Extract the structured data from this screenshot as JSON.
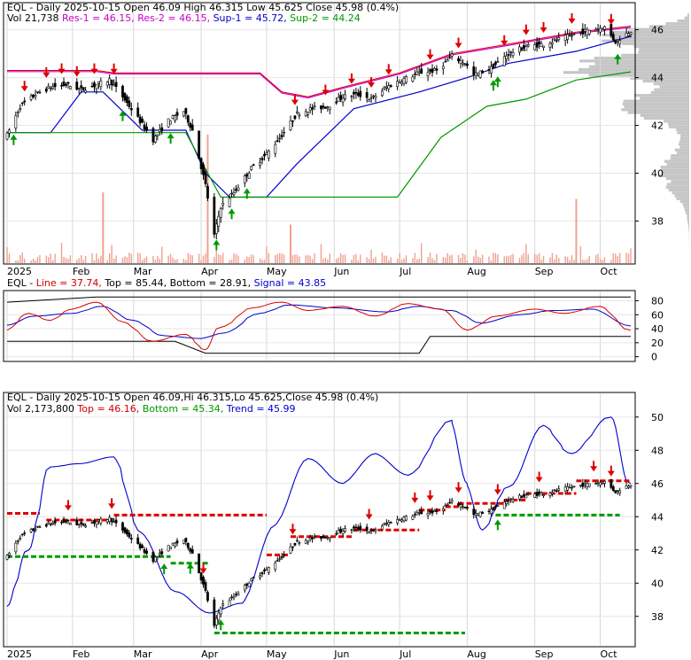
{
  "chart_data": [
    {
      "type": "candlestick",
      "panel": "price",
      "header": {
        "line1_parts": [
          {
            "text": "EQL - Daily 2025-10-15 Open 46.09  High 46.315  Low 45.625  Close 45.98 (0.4%)",
            "color": "#000000"
          }
        ],
        "line2_parts": [
          {
            "text": "Vol 21,738",
            "color": "#000000"
          },
          {
            "text": "Res-1 = 46.15,",
            "color": "#cc00cc"
          },
          {
            "text": "Res-2 = 46.15,",
            "color": "#cc00cc"
          },
          {
            "text": "Sup-1 = 45.72,",
            "color": "#0000cc"
          },
          {
            "text": "Sup-2 = 44.24",
            "color": "#009900"
          }
        ]
      },
      "x_labels": [
        "2025",
        "Feb",
        "Mar",
        "Apr",
        "May",
        "Jun",
        "Jul",
        "Aug",
        "Sep",
        "Oct"
      ],
      "ylim": [
        36.5,
        46.8
      ],
      "y_ticks": [
        38,
        40,
        42,
        44,
        46
      ],
      "anchors": {
        "dates": [
          "2025-01-02",
          "2025-10-15"
        ],
        "close": [
          41.6,
          45.98
        ]
      },
      "close_path": [
        [
          "2025-01-02",
          41.6
        ],
        [
          "2025-01-08",
          42.8
        ],
        [
          "2025-01-15",
          43.3
        ],
        [
          "2025-01-22",
          43.6
        ],
        [
          "2025-01-29",
          43.7
        ],
        [
          "2025-02-05",
          43.5
        ],
        [
          "2025-02-12",
          43.7
        ],
        [
          "2025-02-18",
          43.9
        ],
        [
          "2025-02-24",
          43.2
        ],
        [
          "2025-03-03",
          42.3
        ],
        [
          "2025-03-10",
          41.4
        ],
        [
          "2025-03-17",
          42.2
        ],
        [
          "2025-03-24",
          42.6
        ],
        [
          "2025-03-28",
          41.8
        ],
        [
          "2025-04-03",
          39.5
        ],
        [
          "2025-04-07",
          37.4
        ],
        [
          "2025-04-10",
          38.6
        ],
        [
          "2025-04-16",
          39.2
        ],
        [
          "2025-04-24",
          40.2
        ],
        [
          "2025-05-01",
          40.8
        ],
        [
          "2025-05-08",
          41.6
        ],
        [
          "2025-05-15",
          42.5
        ],
        [
          "2025-05-22",
          42.7
        ],
        [
          "2025-05-29",
          42.8
        ],
        [
          "2025-06-05",
          43.2
        ],
        [
          "2025-06-12",
          43.3
        ],
        [
          "2025-06-18",
          43.1
        ],
        [
          "2025-06-25",
          43.6
        ],
        [
          "2025-07-02",
          43.9
        ],
        [
          "2025-07-10",
          44.2
        ],
        [
          "2025-07-18",
          44.3
        ],
        [
          "2025-07-25",
          44.9
        ],
        [
          "2025-07-31",
          44.6
        ],
        [
          "2025-08-04",
          44.1
        ],
        [
          "2025-08-12",
          44.4
        ],
        [
          "2025-08-20",
          45.0
        ],
        [
          "2025-08-28",
          45.3
        ],
        [
          "2025-09-05",
          45.4
        ],
        [
          "2025-09-12",
          45.6
        ],
        [
          "2025-09-19",
          45.8
        ],
        [
          "2025-09-26",
          46.0
        ],
        [
          "2025-10-03",
          46.1
        ],
        [
          "2025-10-08",
          45.5
        ],
        [
          "2025-10-15",
          45.98
        ]
      ],
      "res1_path": [
        [
          "2025-01-02",
          44.3
        ],
        [
          "2025-02-12",
          44.3
        ],
        [
          "2025-02-20",
          44.2
        ],
        [
          "2025-04-28",
          44.2
        ],
        [
          "2025-05-08",
          43.4
        ],
        [
          "2025-05-20",
          43.2
        ],
        [
          "2025-06-05",
          43.6
        ],
        [
          "2025-07-01",
          44.2
        ],
        [
          "2025-07-25",
          45.0
        ],
        [
          "2025-08-20",
          45.4
        ],
        [
          "2025-09-20",
          45.9
        ],
        [
          "2025-10-15",
          46.15
        ]
      ],
      "sup1_path": [
        [
          "2025-01-02",
          41.7
        ],
        [
          "2025-01-22",
          41.7
        ],
        [
          "2025-02-05",
          43.4
        ],
        [
          "2025-02-15",
          43.4
        ],
        [
          "2025-03-05",
          41.8
        ],
        [
          "2025-03-25",
          41.8
        ],
        [
          "2025-04-03",
          40.0
        ],
        [
          "2025-04-14",
          39.0
        ],
        [
          "2025-05-01",
          39.0
        ],
        [
          "2025-05-15",
          40.4
        ],
        [
          "2025-06-10",
          42.7
        ],
        [
          "2025-07-10",
          43.4
        ],
        [
          "2025-08-01",
          44.0
        ],
        [
          "2025-08-20",
          44.6
        ],
        [
          "2025-09-20",
          45.1
        ],
        [
          "2025-10-15",
          45.72
        ]
      ],
      "sup2_path": [
        [
          "2025-01-02",
          41.7
        ],
        [
          "2025-02-15",
          41.7
        ],
        [
          "2025-03-25",
          41.7
        ],
        [
          "2025-04-10",
          39.0
        ],
        [
          "2025-06-01",
          39.0
        ],
        [
          "2025-06-30",
          39.0
        ],
        [
          "2025-07-20",
          41.5
        ],
        [
          "2025-08-10",
          42.8
        ],
        [
          "2025-08-28",
          43.1
        ],
        [
          "2025-09-20",
          43.9
        ],
        [
          "2025-10-15",
          44.24
        ]
      ],
      "down_arrows": [
        "2025-01-10",
        "2025-01-20",
        "2025-01-27",
        "2025-02-03",
        "2025-02-11",
        "2025-02-20",
        "2025-05-14",
        "2025-05-28",
        "2025-06-09",
        "2025-06-18",
        "2025-06-26",
        "2025-07-15",
        "2025-07-28",
        "2025-08-18",
        "2025-08-28",
        "2025-09-05",
        "2025-09-18",
        "2025-10-06"
      ],
      "up_arrows": [
        "2025-01-05",
        "2025-02-24",
        "2025-03-18",
        "2025-04-08",
        "2025-04-15",
        "2025-04-22",
        "2025-08-13",
        "2025-08-15",
        "2025-10-09"
      ],
      "volume_spikes": [
        [
          "2025-02-15",
          0.55
        ],
        [
          "2025-04-04",
          1.0
        ],
        [
          "2025-05-12",
          0.3
        ],
        [
          "2025-09-20",
          0.5
        ]
      ]
    },
    {
      "type": "line",
      "panel": "indicator",
      "header": [
        {
          "text": "EQL -",
          "color": "#000000"
        },
        {
          "text": "Line = 37.74,",
          "color": "#cc0000"
        },
        {
          "text": "Top = 85.44,",
          "color": "#000000"
        },
        {
          "text": "Bottom = 28.91,",
          "color": "#000000"
        },
        {
          "text": "Signal = 43.85",
          "color": "#0000cc"
        }
      ],
      "ylim": [
        -3,
        92
      ],
      "y_ticks": [
        0,
        20,
        40,
        60,
        80
      ],
      "line_path": [
        [
          "2025-01-02",
          38
        ],
        [
          "2025-01-12",
          62
        ],
        [
          "2025-01-22",
          52
        ],
        [
          "2025-02-01",
          68
        ],
        [
          "2025-02-12",
          78
        ],
        [
          "2025-02-24",
          50
        ],
        [
          "2025-03-10",
          22
        ],
        [
          "2025-03-25",
          32
        ],
        [
          "2025-04-03",
          10
        ],
        [
          "2025-04-10",
          42
        ],
        [
          "2025-04-25",
          70
        ],
        [
          "2025-05-08",
          78
        ],
        [
          "2025-05-20",
          66
        ],
        [
          "2025-06-05",
          72
        ],
        [
          "2025-06-20",
          58
        ],
        [
          "2025-07-05",
          76
        ],
        [
          "2025-07-20",
          68
        ],
        [
          "2025-08-01",
          38
        ],
        [
          "2025-08-15",
          58
        ],
        [
          "2025-09-01",
          68
        ],
        [
          "2025-09-15",
          62
        ],
        [
          "2025-10-01",
          72
        ],
        [
          "2025-10-15",
          37.74
        ]
      ],
      "signal_path": [
        [
          "2025-01-02",
          45
        ],
        [
          "2025-01-15",
          58
        ],
        [
          "2025-02-01",
          62
        ],
        [
          "2025-02-15",
          72
        ],
        [
          "2025-03-01",
          52
        ],
        [
          "2025-03-15",
          30
        ],
        [
          "2025-04-01",
          26
        ],
        [
          "2025-04-12",
          34
        ],
        [
          "2025-04-28",
          62
        ],
        [
          "2025-05-12",
          74
        ],
        [
          "2025-06-01",
          70
        ],
        [
          "2025-06-25",
          64
        ],
        [
          "2025-07-10",
          72
        ],
        [
          "2025-07-25",
          66
        ],
        [
          "2025-08-08",
          48
        ],
        [
          "2025-08-25",
          60
        ],
        [
          "2025-09-10",
          66
        ],
        [
          "2025-09-28",
          68
        ],
        [
          "2025-10-15",
          43.85
        ]
      ],
      "top_path": [
        [
          "2025-01-02",
          78
        ],
        [
          "2025-02-12",
          85.44
        ],
        [
          "2025-10-15",
          85.44
        ]
      ],
      "bottom_path": [
        [
          "2025-01-02",
          22
        ],
        [
          "2025-03-20",
          22
        ],
        [
          "2025-04-03",
          5
        ],
        [
          "2025-07-10",
          5
        ],
        [
          "2025-07-15",
          28.91
        ],
        [
          "2025-10-15",
          28.91
        ]
      ]
    },
    {
      "type": "candlestick",
      "panel": "trend",
      "header": {
        "line1_parts": [
          {
            "text": "EQL - Daily 2025-10-15 Open 46.09,Hi 46.315,Lo 45.625,Close 45.98 (0.4%)",
            "color": "#000000"
          }
        ],
        "line2_parts": [
          {
            "text": "Vol 2,173,800",
            "color": "#000000"
          },
          {
            "text": "Top = 46.16,",
            "color": "#cc0000"
          },
          {
            "text": "Bottom = 45.34,",
            "color": "#009900"
          },
          {
            "text": "Trend = 45.99",
            "color": "#0000cc"
          }
        ]
      },
      "ylim": [
        36.6,
        51.0
      ],
      "y_ticks": [
        38,
        40,
        42,
        44,
        46,
        48,
        50
      ],
      "trend_path": [
        [
          "2025-01-02",
          38.6
        ],
        [
          "2025-01-12",
          42.0
        ],
        [
          "2025-01-22",
          47.0
        ],
        [
          "2025-02-05",
          47.2
        ],
        [
          "2025-02-20",
          47.6
        ],
        [
          "2025-03-05",
          43.0
        ],
        [
          "2025-03-20",
          39.5
        ],
        [
          "2025-04-05",
          38.2
        ],
        [
          "2025-04-20",
          38.8
        ],
        [
          "2025-05-05",
          43.5
        ],
        [
          "2025-05-20",
          47.5
        ],
        [
          "2025-06-05",
          46.0
        ],
        [
          "2025-06-20",
          47.8
        ],
        [
          "2025-07-05",
          46.5
        ],
        [
          "2025-07-25",
          49.8
        ],
        [
          "2025-08-01",
          46.0
        ],
        [
          "2025-08-08",
          43.2
        ],
        [
          "2025-08-20",
          45.8
        ],
        [
          "2025-09-05",
          49.5
        ],
        [
          "2025-09-18",
          47.8
        ],
        [
          "2025-10-06",
          50.0
        ],
        [
          "2025-10-15",
          45.99
        ]
      ],
      "top_segments": [
        [
          "2025-01-02",
          "2025-01-17",
          44.2
        ],
        [
          "2025-01-20",
          "2025-02-18",
          43.8
        ],
        [
          "2025-02-20",
          "2025-05-01",
          44.1
        ],
        [
          "2025-05-01",
          "2025-05-12",
          41.7
        ],
        [
          "2025-05-12",
          "2025-06-10",
          42.8
        ],
        [
          "2025-06-10",
          "2025-07-10",
          43.2
        ],
        [
          "2025-07-10",
          "2025-07-22",
          44.4
        ],
        [
          "2025-07-22",
          "2025-07-28",
          44.6
        ],
        [
          "2025-07-28",
          "2025-08-18",
          44.8
        ],
        [
          "2025-08-18",
          "2025-08-28",
          45.0
        ],
        [
          "2025-08-28",
          "2025-09-20",
          45.4
        ],
        [
          "2025-09-20",
          "2025-10-15",
          46.16
        ]
      ],
      "bottom_segments": [
        [
          "2025-01-02",
          "2025-03-18",
          41.6
        ],
        [
          "2025-03-18",
          "2025-04-05",
          41.2
        ],
        [
          "2025-04-07",
          "2025-07-31",
          37.0
        ],
        [
          "2025-08-14",
          "2025-10-10",
          44.1
        ]
      ],
      "down_arrows": [
        "2025-01-30",
        "2025-02-19",
        "2025-04-02",
        "2025-05-13",
        "2025-06-17",
        "2025-07-08",
        "2025-07-15",
        "2025-07-28",
        "2025-08-15",
        "2025-09-03",
        "2025-09-28",
        "2025-10-06"
      ],
      "up_arrows": [
        "2025-03-15",
        "2025-03-27",
        "2025-04-10",
        "2025-08-15"
      ]
    }
  ]
}
